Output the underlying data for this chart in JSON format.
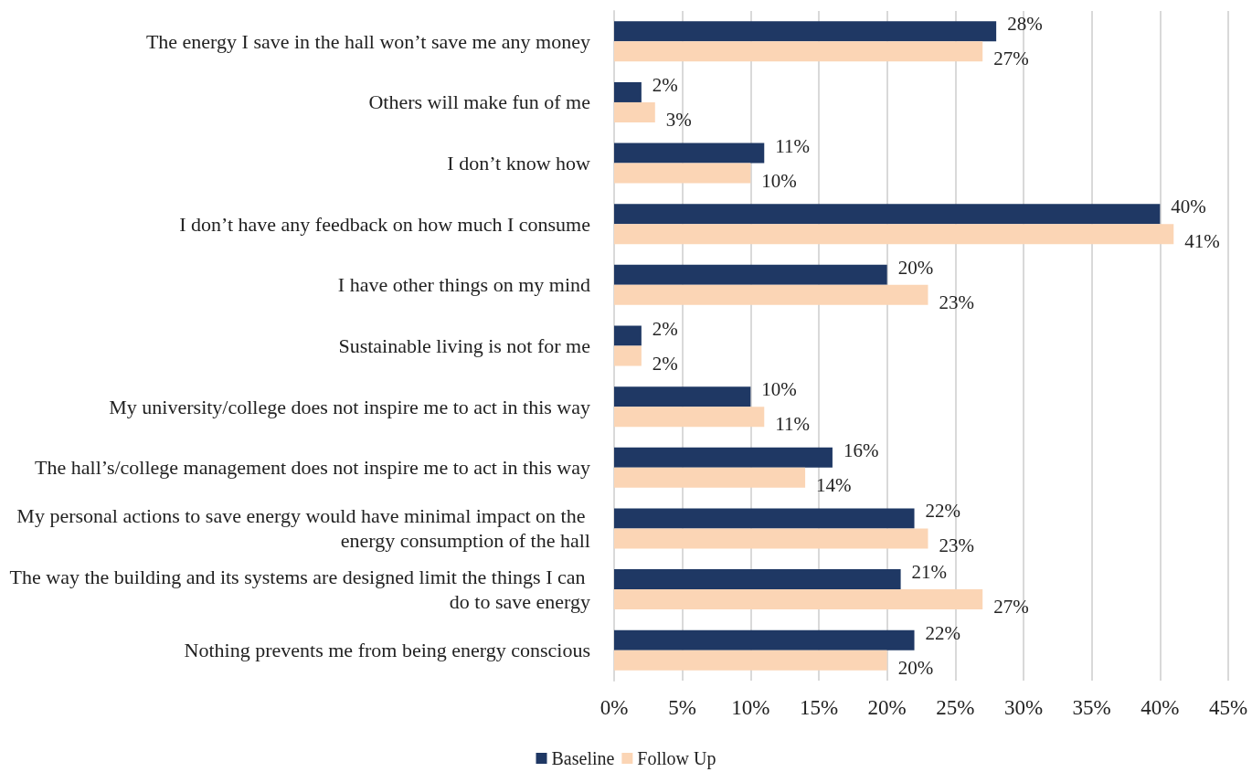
{
  "chart_data": {
    "type": "bar",
    "orientation": "horizontal",
    "categories": [
      "The energy I save in the hall won’t save me any money",
      "Others will make fun of me",
      "I don’t know how",
      "I don’t have any feedback on how much I consume",
      "I have other things on my mind",
      "Sustainable living is not for me",
      "My university/college does not inspire me to act in this way",
      "The hall’s/college management does not inspire me to act in this way",
      "My personal actions to save energy would have minimal impact on the energy consumption of the hall",
      "The way the building and its systems are designed limit the things I can do to save energy",
      "Nothing prevents me from being energy conscious"
    ],
    "series": [
      {
        "name": "Baseline",
        "color": "#1f3864",
        "values": [
          28,
          2,
          11,
          40,
          20,
          2,
          10,
          16,
          22,
          21,
          22
        ],
        "value_labels": [
          "28%",
          "2%",
          "11%",
          "40%",
          "20%",
          "2%",
          "10%",
          "16%",
          "22%",
          "21%",
          "22%"
        ]
      },
      {
        "name": "Follow Up",
        "color": "#fbd5b5",
        "values": [
          27,
          3,
          10,
          41,
          23,
          2,
          11,
          14,
          23,
          27,
          20
        ],
        "value_labels": [
          "27%",
          "3%",
          "10%",
          "41%",
          "23%",
          "2%",
          "11%",
          "14%",
          "23%",
          "27%",
          "20%"
        ]
      }
    ],
    "xlim": [
      0,
      45
    ],
    "xticks": [
      {
        "value": 0,
        "label": "0%"
      },
      {
        "value": 5,
        "label": "5%"
      },
      {
        "value": 10,
        "label": "10%"
      },
      {
        "value": 15,
        "label": "15%"
      },
      {
        "value": 20,
        "label": "20%"
      },
      {
        "value": 25,
        "label": "25%"
      },
      {
        "value": 30,
        "label": "30%"
      },
      {
        "value": 35,
        "label": "35%"
      },
      {
        "value": 40,
        "label": "40%"
      },
      {
        "value": 45,
        "label": "45%"
      }
    ],
    "grid": "x",
    "legend": "bottom"
  }
}
